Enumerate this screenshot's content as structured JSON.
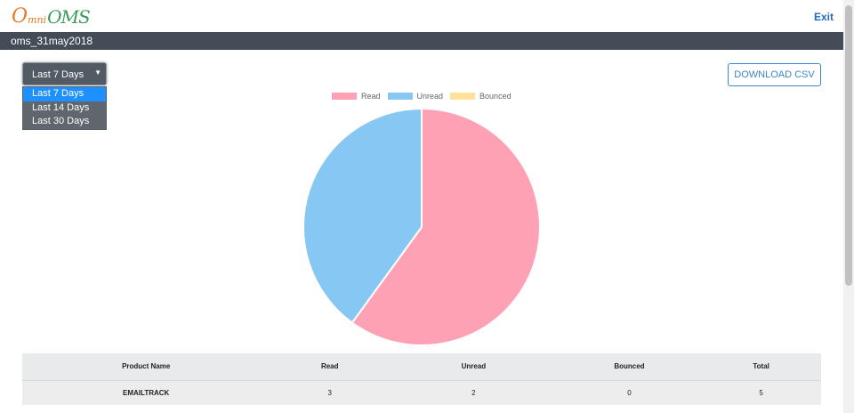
{
  "header": {
    "logo": {
      "o": "O",
      "mni": "mni",
      "oms": "OMS"
    },
    "exit_label": "Exit"
  },
  "subheader": {
    "title": "oms_31may2018"
  },
  "filter": {
    "selected": "Last 7 Days",
    "options": [
      "Last 7 Days",
      "Last 14 Days",
      "Last 30 Days"
    ]
  },
  "actions": {
    "download_csv": "DOWNLOAD CSV"
  },
  "colors": {
    "read": "#ffa1b5",
    "unread": "#86c7f3",
    "bounced": "#ffe29a",
    "accent": "#3a86c8",
    "navbar": "#434c57"
  },
  "chart_data": {
    "type": "pie",
    "legend_position": "top",
    "series": [
      {
        "name": "Read",
        "value": 3
      },
      {
        "name": "Unread",
        "value": 2
      },
      {
        "name": "Bounced",
        "value": 0
      }
    ]
  },
  "table": {
    "headers": [
      "Product Name",
      "Read",
      "Unread",
      "Bounced",
      "Total"
    ],
    "rows": [
      [
        "EMAILTRACK",
        "3",
        "2",
        "0",
        "5"
      ]
    ]
  }
}
